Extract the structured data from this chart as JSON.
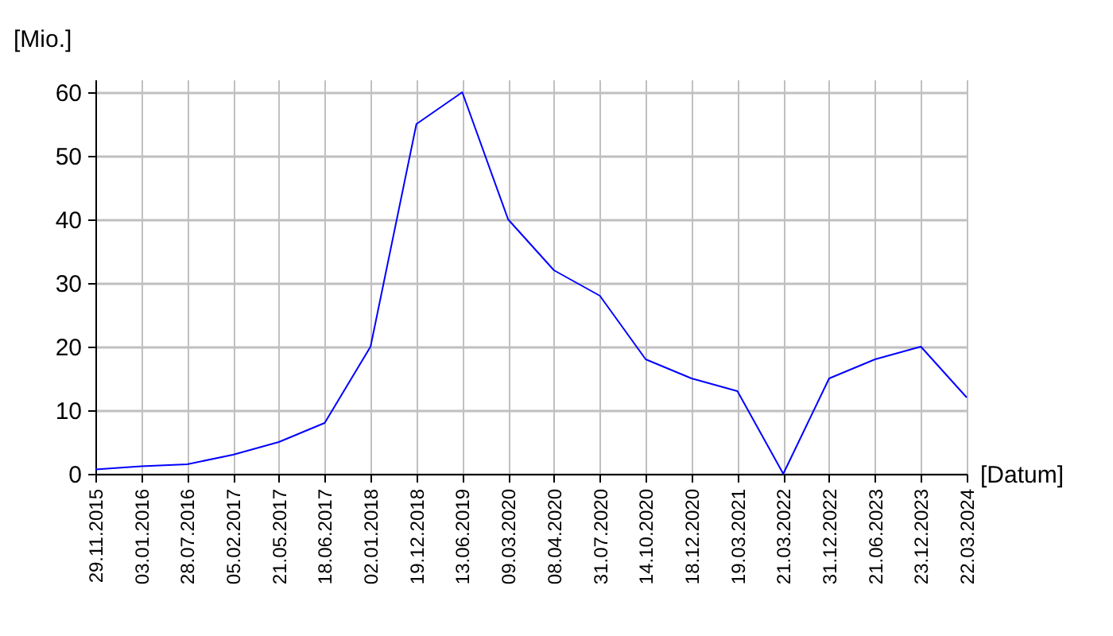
{
  "chart_data": {
    "type": "line",
    "xlabel": "[Datum]",
    "ylabel": "[Mio.]",
    "categories": [
      "29.11.2015",
      "03.01.2016",
      "28.07.2016",
      "05.02.2017",
      "21.05.2017",
      "18.06.2017",
      "02.01.2018",
      "19.12.2018",
      "13.06.2019",
      "09.03.2020",
      "08.04.2020",
      "31.07.2020",
      "14.10.2020",
      "18.12.2020",
      "19.03.2021",
      "21.03.2022",
      "31.12.2022",
      "21.06.2023",
      "23.12.2023",
      "22.03.2024"
    ],
    "series": [
      {
        "color": "#0000ff",
        "values": [
          0.7,
          1.2,
          1.5,
          3,
          5,
          8,
          20,
          55,
          60,
          40,
          32,
          28,
          18,
          15,
          13,
          0,
          15,
          18,
          20,
          12
        ]
      }
    ],
    "ylim": [
      0,
      62
    ],
    "yticks": [
      0,
      10,
      20,
      30,
      40,
      50,
      60
    ],
    "grid": true,
    "marker": "none",
    "line_style": "solid"
  }
}
